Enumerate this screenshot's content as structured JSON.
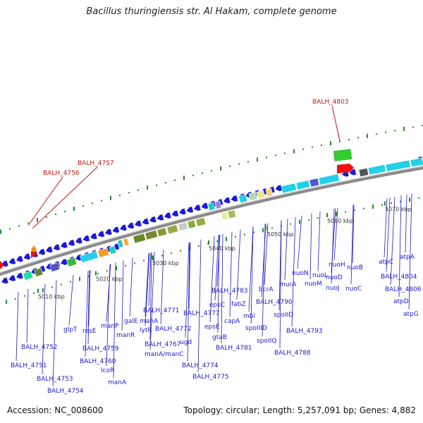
{
  "title": "Bacillus thuringiensis str. Al Hakam, complete genome",
  "footer": {
    "accession": "Accession: NC_008600",
    "summary": "Topology: circular; Length: 5,257,091 bp; Genes: 4,882"
  },
  "colors": {
    "backbone": "#8a8a8a",
    "blue_gene": "#1a1ad6",
    "label_blue": "#1a1acc",
    "label_red": "#cc1111",
    "tick_green": "#2a8a2a"
  },
  "scale_labels": [
    "5010 kbp",
    "5020 kbp",
    "5030 kbp",
    "5040 kbp",
    "5050 kbp",
    "5060 kbp",
    "5070 kbp"
  ],
  "red_labels": [
    "BALH_4756",
    "BALH_4757",
    "BALH_4803"
  ],
  "gene_labels": [
    "BALH_4752",
    "BALH_4751",
    "BALH_4753",
    "BALH_4754",
    "glpT",
    "resE",
    "BALH_4759",
    "BALH_4760",
    "lcoR",
    "manP",
    "manR",
    "manA",
    "galE",
    "manA",
    "lytR",
    "BALH_4767",
    "BALH_4771",
    "BALH_4772",
    "ugd",
    "manA/manC",
    "BALH_4777",
    "BALH_4774",
    "BALH_4775",
    "epsC",
    "epsE",
    "gtaB",
    "capA",
    "BALH_4783",
    "fabZ",
    "mbl",
    "BALH_4781",
    "spoIIID",
    "spoIIQ",
    "bcrA",
    "BALH_4790",
    "BALH_4788",
    "spoIID",
    "murA",
    "BALH_4793",
    "nuoN",
    "nuoM",
    "nuoL",
    "nuoJ",
    "nuoH",
    "nuoD",
    "nuoB",
    "nuoC",
    "atpC",
    "BALH_4804",
    "BALH_4806",
    "atpA",
    "atpD",
    "atpG"
  ]
}
